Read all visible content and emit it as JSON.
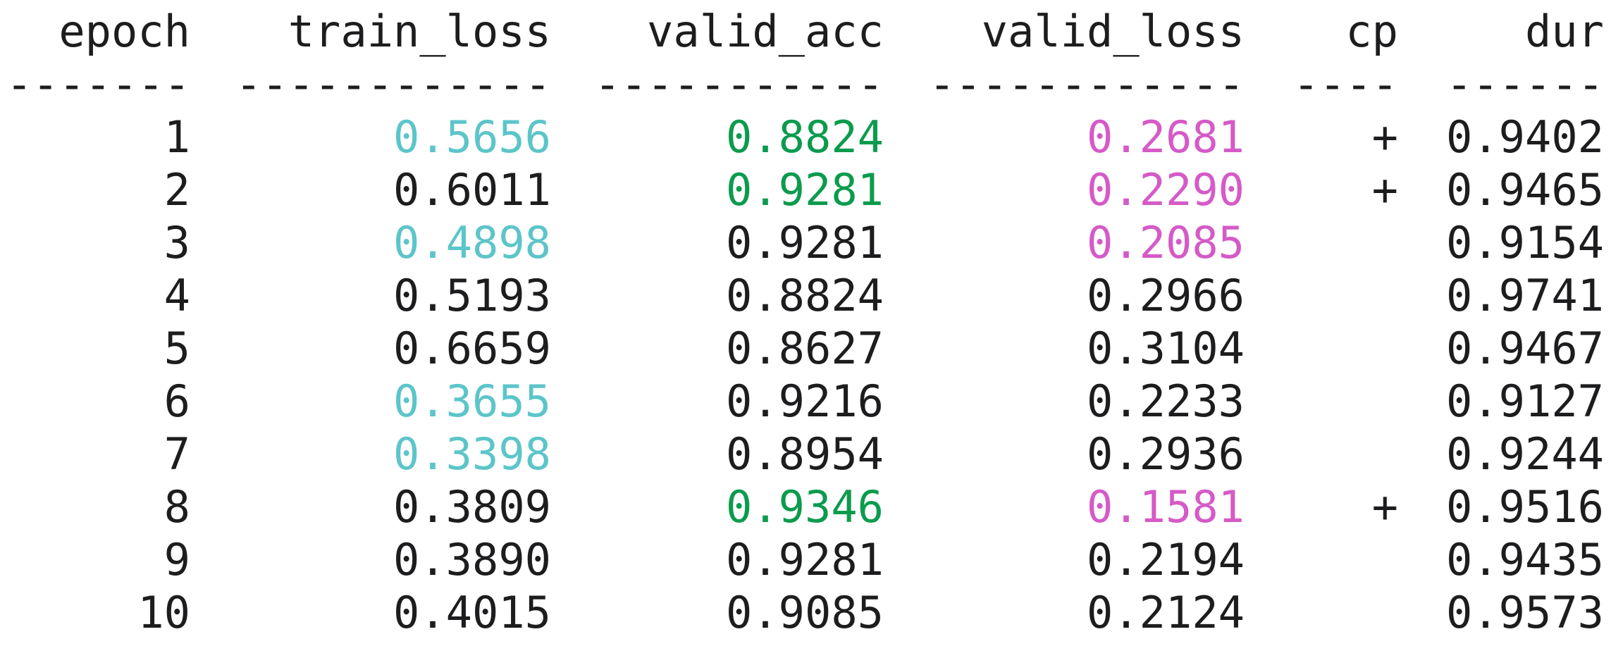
{
  "table": {
    "headers": [
      "epoch",
      "train_loss",
      "valid_acc",
      "valid_loss",
      "cp",
      "dur"
    ],
    "separators": [
      "-------",
      "------------",
      "-----------",
      "------------",
      "----",
      "------"
    ],
    "rows": [
      [
        "1",
        "0.5656",
        "0.8824",
        "0.2681",
        "+",
        "0.9402"
      ],
      [
        "2",
        "0.6011",
        "0.9281",
        "0.2290",
        "+",
        "0.9465"
      ],
      [
        "3",
        "0.4898",
        "0.9281",
        "0.2085",
        "",
        "0.9154"
      ],
      [
        "4",
        "0.5193",
        "0.8824",
        "0.2966",
        "",
        "0.9741"
      ],
      [
        "5",
        "0.6659",
        "0.8627",
        "0.3104",
        "",
        "0.9467"
      ],
      [
        "6",
        "0.3655",
        "0.9216",
        "0.2233",
        "",
        "0.9127"
      ],
      [
        "7",
        "0.3398",
        "0.8954",
        "0.2936",
        "",
        "0.9244"
      ],
      [
        "8",
        "0.3809",
        "0.9346",
        "0.1581",
        "+",
        "0.9516"
      ],
      [
        "9",
        "0.3890",
        "0.9281",
        "0.2194",
        "",
        "0.9435"
      ],
      [
        "10",
        "0.4015",
        "0.9085",
        "0.2124",
        "",
        "0.9573"
      ]
    ],
    "highlights": {
      "train_loss_best_rows": [
        0,
        2,
        5,
        6
      ],
      "valid_acc_best_rows": [
        0,
        1,
        7
      ],
      "valid_loss_best_rows": [
        0,
        1,
        2,
        7
      ]
    },
    "colors": {
      "default": "#1d1d1f",
      "train_loss_best": "#5cc5c9",
      "valid_acc_best": "#0c9b4d",
      "valid_loss_best": "#d55ac7"
    }
  }
}
